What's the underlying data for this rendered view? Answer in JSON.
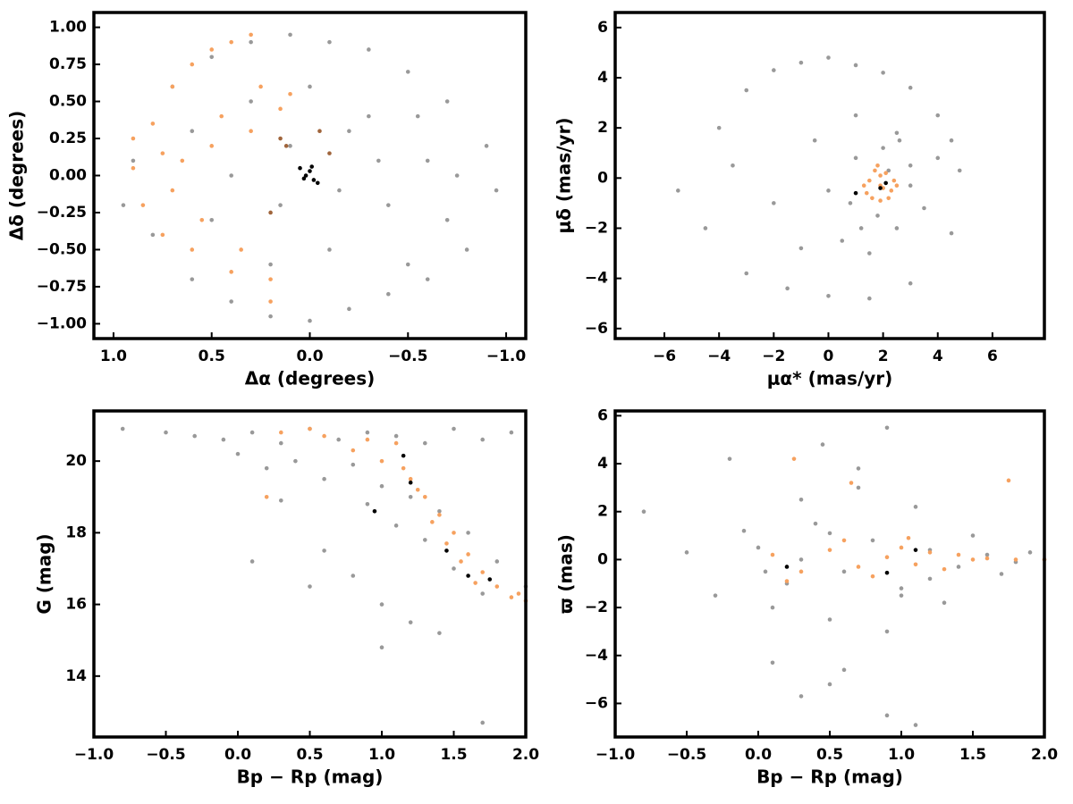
{
  "chart_data": [
    {
      "type": "scatter",
      "xlabel": "Δα (degrees)",
      "ylabel": "Δδ (degrees)",
      "xlim": [
        1.1,
        -1.1
      ],
      "ylim": [
        -1.1,
        1.1
      ],
      "xticks": [
        {
          "value": 1,
          "label": "1.0"
        },
        0.5,
        {
          "value": 0,
          "label": "0.0"
        },
        {
          "value": -0.5,
          "label": "−0.5"
        },
        {
          "value": -1,
          "label": "−1.0"
        }
      ],
      "yticks": [
        {
          "value": 1,
          "label": "1.00"
        },
        {
          "value": 0.75,
          "label": "0.75"
        },
        {
          "value": 0.5,
          "label": "0.50"
        },
        0.25,
        {
          "value": 0,
          "label": "0.00"
        },
        {
          "value": -0.25,
          "label": "−0.25"
        },
        {
          "value": -0.5,
          "label": "−0.50"
        },
        {
          "value": -0.75,
          "label": "−0.75"
        },
        {
          "value": -1,
          "label": "−1.00"
        }
      ],
      "series": [
        {
          "color": "#999999",
          "x": [
            0.9,
            0.7,
            0.5,
            0.3,
            0.1,
            -0.1,
            -0.3,
            -0.5,
            -0.7,
            -0.9,
            0.8,
            0.6,
            0.4,
            0.2,
            0,
            -0.2,
            -0.4,
            -0.6,
            -0.8,
            0.6,
            0.3,
            0,
            -0.3,
            -0.6,
            0.5,
            0.2,
            -0.1,
            -0.4,
            -0.7,
            0.4,
            0.1,
            -0.2,
            -0.5,
            0.15,
            -0.15,
            -0.35,
            -0.55,
            -0.75,
            -0.95,
            0.95
          ],
          "y": [
            0.1,
            0.6,
            0.8,
            0.9,
            0.95,
            0.9,
            0.85,
            0.7,
            0.5,
            0.2,
            -0.4,
            -0.7,
            -0.85,
            -0.95,
            -0.98,
            -0.9,
            -0.8,
            -0.7,
            -0.5,
            0.3,
            0.5,
            0.6,
            0.4,
            0.1,
            -0.3,
            -0.6,
            -0.5,
            -0.2,
            -0.3,
            0.0,
            0.2,
            0.3,
            -0.6,
            -0.2,
            -0.1,
            0.1,
            0.4,
            0.0,
            -0.1,
            -0.2
          ]
        },
        {
          "color": "#f6a15f",
          "x": [
            0.9,
            0.85,
            0.8,
            0.75,
            0.7,
            0.65,
            0.6,
            0.55,
            0.5,
            0.45,
            0.4,
            0.35,
            0.3,
            0.25,
            0.2,
            0.15,
            0.1,
            0.9,
            0.7,
            0.6,
            0.5,
            0.4,
            0.3,
            0.2,
            0.75
          ],
          "y": [
            0.05,
            -0.2,
            0.35,
            -0.4,
            0.6,
            0.1,
            0.75,
            -0.3,
            0.85,
            0.4,
            0.9,
            -0.5,
            0.95,
            0.6,
            -0.7,
            0.45,
            0.55,
            0.25,
            -0.1,
            -0.5,
            0.2,
            -0.65,
            0.3,
            -0.85,
            0.15
          ]
        },
        {
          "color": "#a0653c",
          "x": [
            0.15,
            0.12,
            -0.05,
            -0.1,
            0.2
          ],
          "y": [
            0.25,
            0.2,
            0.3,
            0.15,
            -0.25
          ]
        },
        {
          "color": "#000000",
          "x": [
            0.05,
            0.02,
            -0.02,
            0.0,
            -0.04,
            0.03,
            -0.01
          ],
          "y": [
            0.05,
            0.0,
            -0.03,
            0.03,
            -0.05,
            -0.02,
            0.06
          ]
        }
      ]
    },
    {
      "type": "scatter",
      "xlabel": "μα* (mas/yr)",
      "ylabel": "μδ (mas/yr)",
      "xlim": [
        -7.8,
        7.9
      ],
      "ylim": [
        -6.4,
        6.6
      ],
      "xticks": [
        {
          "value": -6,
          "label": "−6"
        },
        {
          "value": -4,
          "label": "−4"
        },
        {
          "value": -2,
          "label": "−2"
        },
        0,
        2,
        4,
        6
      ],
      "yticks": [
        6,
        4,
        2,
        0,
        {
          "value": -2,
          "label": "−2"
        },
        {
          "value": -4,
          "label": "−4"
        },
        {
          "value": -6,
          "label": "−6"
        }
      ],
      "series": [
        {
          "color": "#999999",
          "x": [
            -5.5,
            -4,
            -3,
            -2,
            -1,
            0,
            1,
            2,
            3,
            4,
            4.8,
            -4.5,
            -3,
            -1.5,
            0,
            1.5,
            3,
            4.5,
            -3.5,
            -2,
            -0.5,
            1,
            2.5,
            4,
            0.5,
            1.5,
            2.5,
            3.5,
            1,
            2,
            3,
            0,
            1.8,
            2.6,
            1.2,
            0.8,
            2.2,
            3.0,
            -1,
            4.5
          ],
          "y": [
            -0.5,
            2,
            3.5,
            4.3,
            4.6,
            4.8,
            4.5,
            4.2,
            3.6,
            2.5,
            0.3,
            -2,
            -3.8,
            -4.4,
            -4.7,
            -4.8,
            -4.2,
            -2.2,
            0.5,
            -1,
            1.5,
            2.5,
            1.8,
            0.8,
            -2.5,
            -3,
            -2,
            -1.2,
            0.8,
            1.2,
            -0.3,
            -0.5,
            -1.5,
            1.5,
            -2,
            -1,
            0.3,
            0.5,
            -2.8,
            1.5
          ]
        },
        {
          "color": "#f6a15f",
          "x": [
            1.9,
            1.5,
            2.3,
            1.7,
            2.1,
            1.4,
            2.4,
            1.9,
            1.6,
            2.2,
            1.8,
            2.0,
            1.3,
            2.5,
            1.9
          ],
          "y": [
            -0.3,
            -0.1,
            -0.5,
            0.3,
            0.2,
            -0.6,
            -0.1,
            -0.9,
            -0.8,
            -0.8,
            0.5,
            -0.4,
            -0.3,
            -0.3,
            0.1
          ]
        },
        {
          "color": "#000000",
          "x": [
            1.0,
            1.9,
            2.1
          ],
          "y": [
            -0.6,
            -0.4,
            -0.2
          ]
        }
      ]
    },
    {
      "type": "scatter",
      "xlabel": "Bp − Rp (mag)",
      "ylabel": "G (mag)",
      "xlim": [
        -1,
        2
      ],
      "ylim": [
        12.3,
        21.4
      ],
      "xticks": [
        {
          "value": -1,
          "label": "−1.0"
        },
        {
          "value": -0.5,
          "label": "−0.5"
        },
        {
          "value": 0,
          "label": "0.0"
        },
        0.5,
        {
          "value": 1,
          "label": "1.0"
        },
        1.5,
        {
          "value": 2,
          "label": "2.0"
        }
      ],
      "yticks": [
        14,
        16,
        18,
        20
      ],
      "series": [
        {
          "color": "#999999",
          "x": [
            -0.8,
            -0.5,
            -0.3,
            -0.1,
            0.1,
            0.3,
            0.5,
            0.7,
            0.9,
            1.1,
            1.3,
            1.5,
            1.7,
            1.9,
            0,
            0.2,
            0.4,
            0.6,
            0.8,
            1.0,
            1.2,
            1.4,
            1.6,
            1.8,
            2.0,
            0.9,
            1.1,
            1.3,
            1.5,
            1.7,
            0.3,
            0.6,
            0.8,
            1.0,
            1.2,
            1.4,
            0.1,
            0.5,
            1.0,
            1.7
          ],
          "y": [
            20.9,
            20.8,
            20.7,
            20.6,
            20.8,
            20.5,
            20.9,
            20.6,
            20.8,
            20.7,
            20.5,
            20.9,
            20.6,
            20.8,
            20.2,
            19.8,
            20.0,
            19.5,
            19.9,
            19.3,
            19.0,
            18.6,
            18.0,
            17.2,
            16.5,
            18.8,
            18.2,
            17.8,
            17.0,
            16.3,
            18.9,
            17.5,
            16.8,
            16.0,
            15.5,
            15.2,
            17.2,
            16.5,
            14.8,
            12.7
          ]
        },
        {
          "color": "#f6a15f",
          "x": [
            0.3,
            0.6,
            0.9,
            1.1,
            1.2,
            1.3,
            1.4,
            1.5,
            1.6,
            1.7,
            1.8,
            1.9,
            2.0,
            1.0,
            1.25,
            1.35,
            1.45,
            1.55,
            0.8,
            1.15,
            0.5,
            0.2,
            1.65,
            1.95
          ],
          "y": [
            20.8,
            20.7,
            20.6,
            20.5,
            19.5,
            19.0,
            18.5,
            18.0,
            17.4,
            16.9,
            16.5,
            16.2,
            16.1,
            20.0,
            19.2,
            18.3,
            17.7,
            17.2,
            20.3,
            19.8,
            20.9,
            19.0,
            16.6,
            16.3
          ]
        },
        {
          "color": "#000000",
          "x": [
            1.15,
            0.95,
            1.45,
            1.6,
            1.75,
            1.2
          ],
          "y": [
            20.15,
            18.6,
            17.5,
            16.8,
            16.7,
            19.4
          ]
        }
      ]
    },
    {
      "type": "scatter",
      "xlabel": "Bp − Rp (mag)",
      "ylabel": "ϖ (mas)",
      "xlim": [
        -1,
        2
      ],
      "ylim": [
        -7.4,
        6.2
      ],
      "xticks": [
        {
          "value": -1,
          "label": "−1.0"
        },
        {
          "value": -0.5,
          "label": "−0.5"
        },
        {
          "value": 0,
          "label": "0.0"
        },
        0.5,
        {
          "value": 1,
          "label": "1.0"
        },
        1.5,
        {
          "value": 2,
          "label": "2.0"
        }
      ],
      "yticks": [
        6,
        4,
        2,
        0,
        {
          "value": -2,
          "label": "−2"
        },
        {
          "value": -4,
          "label": "−4"
        },
        {
          "value": -6,
          "label": "−6"
        }
      ],
      "series": [
        {
          "color": "#999999",
          "x": [
            -0.8,
            -0.5,
            -0.3,
            -0.1,
            0.1,
            0.3,
            0.5,
            0.7,
            0.9,
            1.1,
            1.3,
            1.5,
            1.7,
            1.9,
            0,
            0.2,
            0.4,
            0.6,
            0.8,
            1.0,
            1.2,
            1.4,
            1.6,
            1.8,
            2.0,
            0.1,
            0.3,
            0.5,
            0.7,
            0.9,
            1.1,
            -0.2,
            0.6,
            0.9,
            1.0,
            0.5,
            0.3,
            1.2,
            0.05,
            0.45
          ],
          "y": [
            2.0,
            0.3,
            -1.5,
            1.2,
            -2.0,
            2.5,
            -2.5,
            3.0,
            -3.0,
            2.2,
            -1.8,
            1.0,
            -0.6,
            0.3,
            0.5,
            -1.0,
            1.5,
            -0.5,
            0.8,
            -1.2,
            0.4,
            -0.3,
            0.2,
            -0.1,
            0,
            -4.3,
            -5.7,
            -5.2,
            3.8,
            -6.5,
            -6.9,
            4.2,
            -4.6,
            5.5,
            -1.5,
            1.1,
            0.0,
            -0.8,
            -0.5,
            4.8
          ]
        },
        {
          "color": "#f6a15f",
          "x": [
            0.1,
            0.3,
            0.5,
            0.7,
            0.9,
            1.0,
            1.1,
            1.2,
            1.3,
            1.4,
            1.5,
            1.6,
            1.8,
            2.0,
            0.2,
            0.6,
            0.8,
            1.05,
            0.25,
            0.65,
            1.75
          ],
          "y": [
            0.2,
            -0.5,
            0.4,
            -0.3,
            0.1,
            0.5,
            -0.2,
            0.3,
            -0.4,
            0.2,
            0.0,
            0.05,
            0.0,
            0.0,
            -0.9,
            0.8,
            -0.7,
            0.9,
            4.2,
            3.2,
            3.3
          ]
        },
        {
          "color": "#000000",
          "x": [
            0.9,
            1.1,
            0.2
          ],
          "y": [
            -0.55,
            0.4,
            -0.3
          ]
        }
      ]
    }
  ]
}
